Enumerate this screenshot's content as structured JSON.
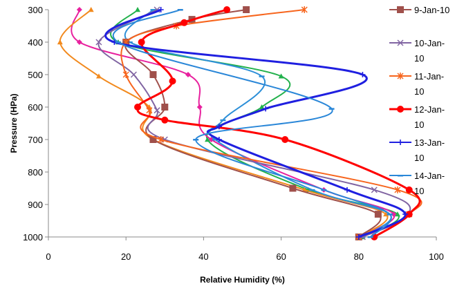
{
  "chart_data": {
    "type": "scatter",
    "title": "",
    "xlabel": "Relative Humidity (%)",
    "ylabel": "Pressure (HPa)",
    "xlim": [
      0,
      100
    ],
    "ylim": [
      300,
      1000
    ],
    "y_reversed": true,
    "x_ticks": [
      0,
      20,
      40,
      60,
      80,
      100
    ],
    "y_ticks": [
      300,
      400,
      500,
      600,
      700,
      800,
      900,
      1000
    ],
    "smooth_lines": true,
    "grid": false,
    "legend_position": "right",
    "series": [
      {
        "name": "9-Jan-10",
        "color": "#a0504b",
        "marker": "square",
        "points": [
          [
            51,
            300
          ],
          [
            37,
            330
          ],
          [
            20,
            400
          ],
          [
            27,
            500
          ],
          [
            30,
            600
          ],
          [
            27,
            700
          ],
          [
            63,
            850
          ],
          [
            85,
            930
          ],
          [
            80,
            1000
          ]
        ]
      },
      {
        "name": "10-Jan-10",
        "color": "#8064a2",
        "marker": "x",
        "points": [
          [
            28,
            300
          ],
          [
            13,
            400
          ],
          [
            22,
            500
          ],
          [
            28,
            610
          ],
          [
            30,
            700
          ],
          [
            84,
            855
          ],
          [
            93,
            930
          ],
          [
            81,
            1000
          ]
        ]
      },
      {
        "name": "11-Jan-10",
        "color": "#f7651d",
        "marker": "star",
        "points": [
          [
            66,
            300
          ],
          [
            33,
            350
          ],
          [
            20,
            400
          ],
          [
            20,
            500
          ],
          [
            26,
            610
          ],
          [
            29,
            700
          ],
          [
            90,
            855
          ],
          [
            93,
            930
          ],
          [
            80,
            1000
          ]
        ]
      },
      {
        "name": "12-Jan-10",
        "color": "#ff0000",
        "marker": "circle",
        "points": [
          [
            46,
            300
          ],
          [
            35,
            340
          ],
          [
            24,
            400
          ],
          [
            32,
            520
          ],
          [
            23,
            600
          ],
          [
            30,
            640
          ],
          [
            61,
            700
          ],
          [
            93,
            855
          ],
          [
            93,
            930
          ],
          [
            84,
            1000
          ]
        ]
      },
      {
        "name": "13-Jan-10",
        "color": "#1f1fe0",
        "marker": "plus",
        "points": [
          [
            29,
            300
          ],
          [
            17,
            400
          ],
          [
            81,
            500
          ],
          [
            56,
            605
          ],
          [
            44,
            660
          ],
          [
            44,
            700
          ],
          [
            77,
            855
          ],
          [
            92,
            930
          ],
          [
            80,
            1000
          ]
        ]
      },
      {
        "name": "14-Jan-10",
        "color": "#2a87d8",
        "marker": "dash",
        "points": [
          [
            34,
            300
          ],
          [
            18,
            400
          ],
          [
            73,
            605
          ],
          [
            38,
            700
          ],
          [
            71,
            855
          ],
          [
            88,
            930
          ],
          [
            83,
            1000
          ]
        ]
      },
      {
        "name": "",
        "color": "#22b14c",
        "marker": "triangle",
        "points": [
          [
            23,
            300
          ],
          [
            18,
            400
          ],
          [
            60,
            505
          ],
          [
            55,
            600
          ],
          [
            41,
            700
          ],
          [
            67,
            855
          ],
          [
            90,
            930
          ],
          [
            81,
            1000
          ]
        ]
      },
      {
        "name": "",
        "color": "#e8219e",
        "marker": "diamond",
        "points": [
          [
            8,
            300
          ],
          [
            8,
            400
          ],
          [
            36,
            500
          ],
          [
            39,
            600
          ],
          [
            42,
            700
          ],
          [
            71,
            855
          ],
          [
            89,
            930
          ],
          [
            80,
            1000
          ]
        ]
      },
      {
        "name": "",
        "color": "#f28a1e",
        "marker": "triangle",
        "points": [
          [
            11,
            300
          ],
          [
            3,
            400
          ],
          [
            13,
            505
          ],
          [
            26,
            600
          ],
          [
            27,
            700
          ],
          [
            66,
            855
          ],
          [
            87,
            930
          ],
          [
            80,
            1000
          ]
        ]
      },
      {
        "name": "",
        "color": "#2c8fd8",
        "marker": "dash",
        "points": [
          [
            27,
            300
          ],
          [
            21,
            400
          ],
          [
            55,
            505
          ],
          [
            45,
            640
          ],
          [
            43,
            700
          ],
          [
            68,
            855
          ],
          [
            88,
            930
          ],
          [
            81,
            1000
          ]
        ]
      }
    ]
  }
}
